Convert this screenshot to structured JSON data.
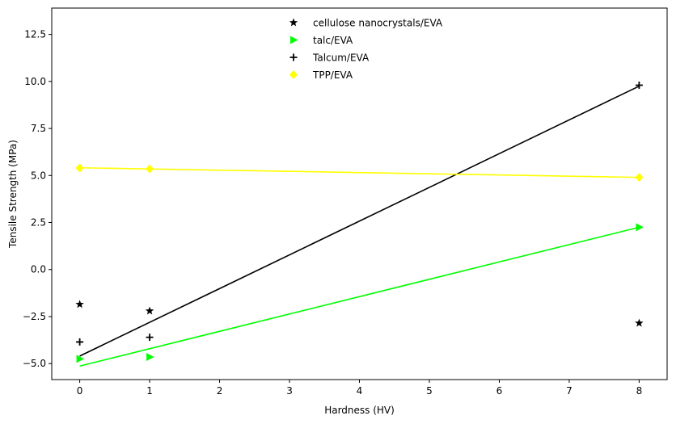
{
  "chart_data": {
    "type": "scatter",
    "title": "",
    "xlabel": "Hardness (HV)",
    "ylabel": "Tensile Strength (MPa)",
    "xlim": [
      -0.4,
      8.4
    ],
    "ylim": [
      -5.85,
      13.9
    ],
    "xticks": [
      0,
      1,
      2,
      3,
      4,
      5,
      6,
      7,
      8
    ],
    "yticks": [
      -5.0,
      -2.5,
      0.0,
      2.5,
      5.0,
      7.5,
      10.0,
      12.5
    ],
    "xtick_labels": [
      "0",
      "1",
      "2",
      "3",
      "4",
      "5",
      "6",
      "7",
      "8"
    ],
    "ytick_labels": [
      "−5.0",
      "−2.5",
      "0.0",
      "2.5",
      "5.0",
      "7.5",
      "10.0",
      "12.5"
    ],
    "grid": false,
    "legend_position": "top-center",
    "series": [
      {
        "name": "cellulose nanocrystals/EVA",
        "marker": "star",
        "color": "#000000",
        "x": [
          0,
          1,
          8
        ],
        "y": [
          -1.85,
          -2.2,
          -2.85
        ],
        "fit_line": null
      },
      {
        "name": "talc/EVA",
        "marker": "triangle-right",
        "color": "#00ff00",
        "x": [
          0,
          1,
          8
        ],
        "y": [
          -4.75,
          -4.65,
          2.25
        ],
        "fit_line": {
          "color": "#00ff00",
          "x": [
            0,
            8
          ],
          "y": [
            -5.13,
            2.25
          ]
        }
      },
      {
        "name": "Talcum/EVA",
        "marker": "plus",
        "color": "#000000",
        "x": [
          0,
          1,
          8
        ],
        "y": [
          -3.85,
          -3.6,
          9.8
        ],
        "fit_line": {
          "color": "#000000",
          "x": [
            0,
            8
          ],
          "y": [
            -4.6,
            9.75
          ]
        }
      },
      {
        "name": "TPP/EVA",
        "marker": "diamond",
        "color": "#ffff00",
        "x": [
          0,
          1,
          8
        ],
        "y": [
          5.4,
          5.35,
          4.9
        ],
        "fit_line": {
          "color": "#ffff00",
          "x": [
            0,
            8
          ],
          "y": [
            5.41,
            4.9
          ]
        }
      }
    ]
  }
}
